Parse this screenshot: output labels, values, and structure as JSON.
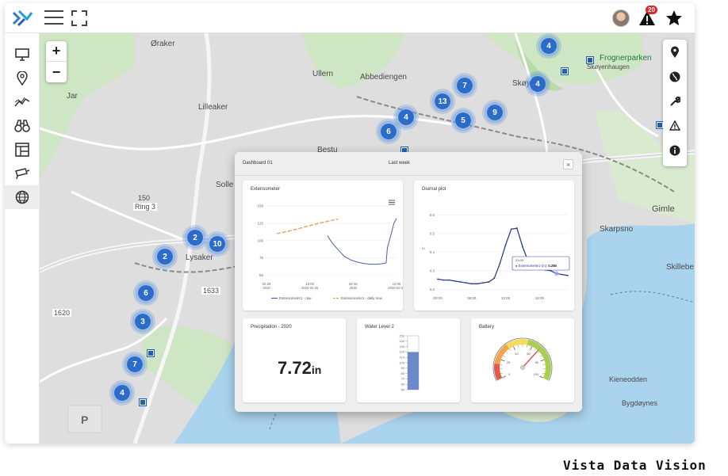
{
  "header": {
    "alert_count": "20"
  },
  "sidebar": {
    "items": [
      "monitor-icon",
      "location-pin-icon",
      "trend-icon",
      "binoculars-icon",
      "layout-icon",
      "globe-icon"
    ]
  },
  "zoom": {
    "in_label": "+",
    "out_label": "−"
  },
  "map": {
    "labels": [
      {
        "text": "Øraker"
      },
      {
        "text": "Ullern"
      },
      {
        "text": "Abbediengen"
      },
      {
        "text": "Lilleaker"
      },
      {
        "text": "Solle"
      },
      {
        "text": "Bestu"
      },
      {
        "text": "Skøyen"
      },
      {
        "text": "Frognerparken"
      },
      {
        "text": "Skøyenhaugen"
      },
      {
        "text": "Lysaker"
      },
      {
        "text": "Ring 3"
      },
      {
        "text": "150"
      },
      {
        "text": "1633"
      },
      {
        "text": "1620"
      },
      {
        "text": "Gimle"
      },
      {
        "text": "Skarpsno"
      },
      {
        "text": "Skillebe"
      },
      {
        "text": "Kieneodden"
      },
      {
        "text": "Bygdøynes"
      },
      {
        "text": "Jar"
      }
    ],
    "clusters": [
      "4",
      "4",
      "7",
      "13",
      "4",
      "9",
      "5",
      "6",
      "2",
      "10",
      "2",
      "2",
      "6",
      "3",
      "7",
      "4"
    ]
  },
  "dashboard": {
    "title": "Dashboard 01",
    "tab": "Last week",
    "close_label": "×",
    "extensometer": {
      "title": "Extensometer",
      "chart_data": {
        "type": "line",
        "y_ticks": [
          "150",
          "125",
          "100",
          "75",
          "50"
        ],
        "x_ticks": [
          "02-25\n2020",
          "12:00\n2020-02-25",
          "02-26\n2020",
          "12:00\n2020-02-26"
        ],
        "series": [
          {
            "name": "Extensometer1 - raw",
            "color": "#4a5dae",
            "points": [
              [
                0.47,
                107
              ],
              [
                0.5,
                98
              ],
              [
                0.55,
                87
              ],
              [
                0.6,
                77
              ],
              [
                0.65,
                72
              ],
              [
                0.7,
                69
              ],
              [
                0.75,
                67
              ],
              [
                0.8,
                66
              ],
              [
                0.85,
                66
              ],
              [
                0.9,
                67
              ],
              [
                0.92,
                68
              ],
              [
                0.93,
                90
              ],
              [
                0.96,
                110
              ],
              [
                0.98,
                125
              ],
              [
                1.0,
                132
              ]
            ]
          },
          {
            "name": "Extensometer1 - daily max",
            "color": "#e8a15a",
            "points": [
              [
                0.08,
                110
              ],
              [
                0.2,
                115
              ],
              [
                0.3,
                120
              ],
              [
                0.4,
                125
              ],
              [
                0.55,
                131
              ]
            ]
          }
        ],
        "ylim": [
          45,
          150
        ]
      }
    },
    "diurnal": {
      "title": "Diurnal plot",
      "chart_data": {
        "type": "line",
        "y_ticks": [
          "0.6",
          "0.5",
          "0.4",
          "0.3",
          "0.2"
        ],
        "x_ticks": [
          "00:00",
          "06:00",
          "12:00",
          "18:00"
        ],
        "ylabel": "in",
        "ylim": [
          0.18,
          0.65
        ],
        "series": [
          {
            "name": "Extensometer2 (in)",
            "color": "#2c3e8c",
            "points": [
              [
                0,
                0.255
              ],
              [
                1,
                0.25
              ],
              [
                2,
                0.25
              ],
              [
                3,
                0.245
              ],
              [
                4,
                0.24
              ],
              [
                5,
                0.235
              ],
              [
                6,
                0.23
              ],
              [
                7,
                0.23
              ],
              [
                8,
                0.235
              ],
              [
                9,
                0.24
              ],
              [
                10,
                0.26
              ],
              [
                11,
                0.34
              ],
              [
                12,
                0.44
              ],
              [
                13,
                0.525
              ],
              [
                14,
                0.53
              ],
              [
                15,
                0.43
              ],
              [
                16,
                0.35
              ],
              [
                17,
                0.33
              ],
              [
                18,
                0.31
              ],
              [
                19,
                0.305
              ],
              [
                20,
                0.3
              ],
              [
                21,
                0.285
              ],
              [
                22,
                0.28
              ],
              [
                23,
                0.275
              ]
            ]
          }
        ],
        "tooltip_time": "21:00",
        "tooltip_label": "Extensometer2 (in):",
        "tooltip_value": "0.285"
      }
    },
    "precipitation": {
      "title": "Precipitation - 2020",
      "value": "7.72",
      "unit": "in"
    },
    "water_level": {
      "title": "Water Level 2",
      "ticks": [
        "150",
        "140",
        "130",
        "120",
        "110",
        "100",
        "90",
        "80",
        "70",
        "60",
        "50"
      ],
      "value": 120,
      "min": 50,
      "max": 150,
      "fill_color": "#6d8ac8"
    },
    "battery": {
      "title": "Battery",
      "value": 68,
      "min": 0,
      "max": 100,
      "ticks": [
        "0",
        "20",
        "40",
        "60",
        "80",
        "100"
      ]
    }
  },
  "watermark": "Vista Data Vision"
}
